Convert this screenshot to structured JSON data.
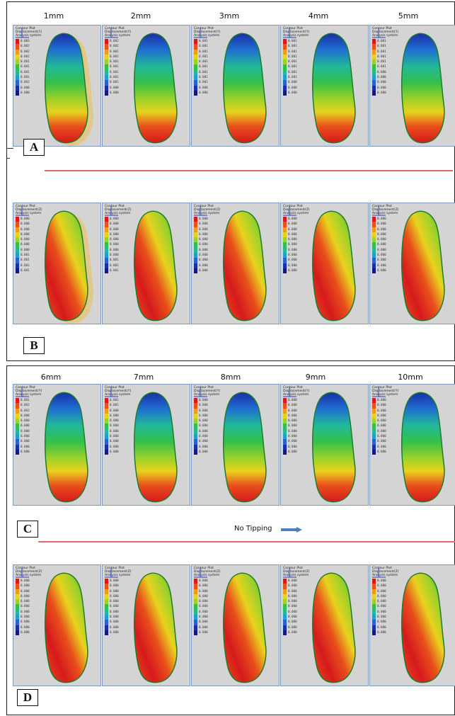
{
  "top_section": {
    "headers": [
      "1mm",
      "2mm",
      "3mm",
      "4mm",
      "5mm"
    ],
    "row_a": {
      "letter": "A",
      "cells": [
        {
          "legend_title": "Contour Plot\nDisplacement(Y)\nAnalysis system",
          "values": [
            "0.003",
            "0.002",
            "0.002",
            "0.001",
            "0.001",
            "0.001",
            "0.001",
            "0.001",
            "0.001",
            "0.000",
            "0.000"
          ],
          "fill": "y",
          "outline": true
        },
        {
          "legend_title": "Contour Plot\nDisplacement(Y)\nAnalysis system",
          "values": [
            "0.002",
            "0.002",
            "0.001",
            "0.001",
            "0.001",
            "0.001",
            "0.001",
            "0.001",
            "0.001",
            "0.000",
            "0.000"
          ],
          "fill": "y",
          "outline": false
        },
        {
          "legend_title": "Contour Plot\nDisplacement(Y)\nAnalysis system",
          "values": [
            "0.001",
            "0.001",
            "0.001",
            "0.001",
            "0.001",
            "0.001",
            "0.001",
            "0.001",
            "0.001",
            "0.000",
            "0.000"
          ],
          "fill": "y",
          "outline": false
        },
        {
          "legend_title": "Contour Plot\nDisplacement(Y)\nAnalysis system",
          "values": [
            "0.001",
            "0.001",
            "0.001",
            "0.001",
            "0.001",
            "0.001",
            "0.001",
            "0.001",
            "0.000",
            "0.000",
            "0.000"
          ],
          "fill": "y",
          "outline": false
        },
        {
          "legend_title": "Contour Plot\nDisplacement(Y)\nAnalysis system",
          "values": [
            "0.001",
            "0.001",
            "0.001",
            "0.001",
            "0.001",
            "0.001",
            "0.000",
            "0.000",
            "0.000",
            "0.000",
            "0.000"
          ],
          "fill": "y",
          "outline": false
        }
      ]
    },
    "row_b": {
      "letter": "B",
      "cells": [
        {
          "legend_title": "Contour Plot\nDisplacement(Z)\nAnalysis system",
          "values": [
            "0.000",
            "0.000",
            "0.000",
            "0.000",
            "0.000",
            "0.000",
            "0.000",
            "0.001",
            "0.001",
            "0.001",
            "0.001"
          ],
          "fill": "z",
          "outline": true
        },
        {
          "legend_title": "Contour Plot\nDisplacement(Z)\nAnalysis system",
          "values": [
            "0.000",
            "0.000",
            "0.000",
            "0.000",
            "0.000",
            "0.000",
            "0.000",
            "0.000",
            "0.001",
            "0.001",
            "0.001"
          ],
          "fill": "z",
          "outline": false
        },
        {
          "legend_title": "Contour Plot\nDisplacement(Z)\nAnalysis system",
          "values": [
            "0.000",
            "0.000",
            "0.000",
            "0.000",
            "0.000",
            "0.000",
            "0.000",
            "0.000",
            "0.000",
            "0.000",
            "0.000"
          ],
          "fill": "z",
          "outline": false
        },
        {
          "legend_title": "Contour Plot\nDisplacement(Z)\nAnalysis system",
          "values": [
            "0.000",
            "0.000",
            "0.000",
            "0.000",
            "0.000",
            "0.000",
            "0.000",
            "0.000",
            "0.000",
            "0.000",
            "0.000"
          ],
          "fill": "z",
          "outline": false
        },
        {
          "legend_title": "Contour Plot\nDisplacement(Z)\nAnalysis system",
          "values": [
            "0.000",
            "0.000",
            "0.000",
            "0.000",
            "0.000",
            "0.000",
            "0.000",
            "0.000",
            "0.000",
            "0.000",
            "0.000"
          ],
          "fill": "z",
          "outline": false
        }
      ]
    }
  },
  "bottom_section": {
    "headers": [
      "6mm",
      "7mm",
      "8mm",
      "9mm",
      "10mm"
    ],
    "no_tipping_label": "No Tipping",
    "row_c": {
      "letter": "C",
      "cells": [
        {
          "legend_title": "Contour Plot\nDisplacement(Y)\nAnalysis system",
          "values": [
            "0.001",
            "0.001",
            "0.001",
            "0.000",
            "0.000",
            "0.000",
            "0.000",
            "0.000",
            "0.000",
            "0.000",
            "0.000"
          ],
          "fill": "y",
          "outline": false
        },
        {
          "legend_title": "Contour Plot\nDisplacement(Y)\nAnalysis system",
          "values": [
            "0.001",
            "0.001",
            "0.000",
            "0.000",
            "0.000",
            "0.000",
            "0.000",
            "0.000",
            "0.000",
            "0.000",
            "0.000"
          ],
          "fill": "y",
          "outline": false
        },
        {
          "legend_title": "Contour Plot\nDisplacement(Y)\nAnalysis system",
          "values": [
            "0.000",
            "0.000",
            "0.000",
            "0.000",
            "0.000",
            "0.000",
            "0.000",
            "0.000",
            "0.000",
            "0.000",
            "0.000"
          ],
          "fill": "y",
          "outline": false
        },
        {
          "legend_title": "Contour Plot\nDisplacement(Y)\nAnalysis system",
          "values": [
            "0.000",
            "0.000",
            "0.000",
            "0.000",
            "0.000",
            "0.000",
            "0.000",
            "0.000",
            "0.000",
            "0.000",
            "0.000"
          ],
          "fill": "y",
          "outline": false
        },
        {
          "legend_title": "Contour Plot\nDisplacement(Y)\nAnalysis system",
          "values": [
            "0.000",
            "0.000",
            "0.000",
            "0.000",
            "0.000",
            "0.000",
            "0.000",
            "0.000",
            "0.000",
            "0.000",
            "0.000"
          ],
          "fill": "y",
          "outline": false
        }
      ]
    },
    "row_d": {
      "letter": "D",
      "cells": [
        {
          "legend_title": "Contour Plot\nDisplacement(Z)\nAnalysis system",
          "values": [
            "0.000",
            "0.000",
            "0.000",
            "0.000",
            "0.000",
            "0.000",
            "0.000",
            "0.000",
            "0.000",
            "0.000",
            "0.000"
          ],
          "fill": "z",
          "outline": false
        },
        {
          "legend_title": "Contour Plot\nDisplacement(Z)\nAnalysis system",
          "values": [
            "0.000",
            "0.000",
            "0.000",
            "0.000",
            "0.000",
            "0.000",
            "0.000",
            "0.000",
            "0.000",
            "0.000",
            "0.000"
          ],
          "fill": "z",
          "outline": false
        },
        {
          "legend_title": "Contour Plot\nDisplacement(Z)\nAnalysis system",
          "values": [
            "0.000",
            "0.000",
            "0.000",
            "0.000",
            "0.000",
            "0.000",
            "0.000",
            "0.000",
            "0.000",
            "0.000",
            "0.000"
          ],
          "fill": "z",
          "outline": false
        },
        {
          "legend_title": "Contour Plot\nDisplacement(Z)\nAnalysis system",
          "values": [
            "0.000",
            "0.000",
            "0.000",
            "0.000",
            "0.000",
            "0.000",
            "0.000",
            "0.000",
            "0.000",
            "0.000",
            "0.000"
          ],
          "fill": "z",
          "outline": false
        },
        {
          "legend_title": "Contour Plot\nDisplacement(Z)\nAnalysis system",
          "values": [
            "0.000",
            "0.000",
            "0.000",
            "0.000",
            "0.000",
            "0.000",
            "0.000",
            "0.000",
            "0.000",
            "0.000",
            "0.000"
          ],
          "fill": "z",
          "outline": false
        }
      ]
    }
  },
  "colors": {
    "cell_bg": "#d4d4d4",
    "cell_border": "#7f97b8",
    "divider_line": "#e36a6a",
    "arrow": "#4f7fbf",
    "outline_shadow": "#e2c98a",
    "legend_scale": [
      "#d7191c",
      "#e8501c",
      "#f09a1a",
      "#e8d21e",
      "#9bd12a",
      "#33c04a",
      "#22b89b",
      "#1f9fd0",
      "#2a62c8",
      "#1c2fa8",
      "#141a7a"
    ]
  }
}
